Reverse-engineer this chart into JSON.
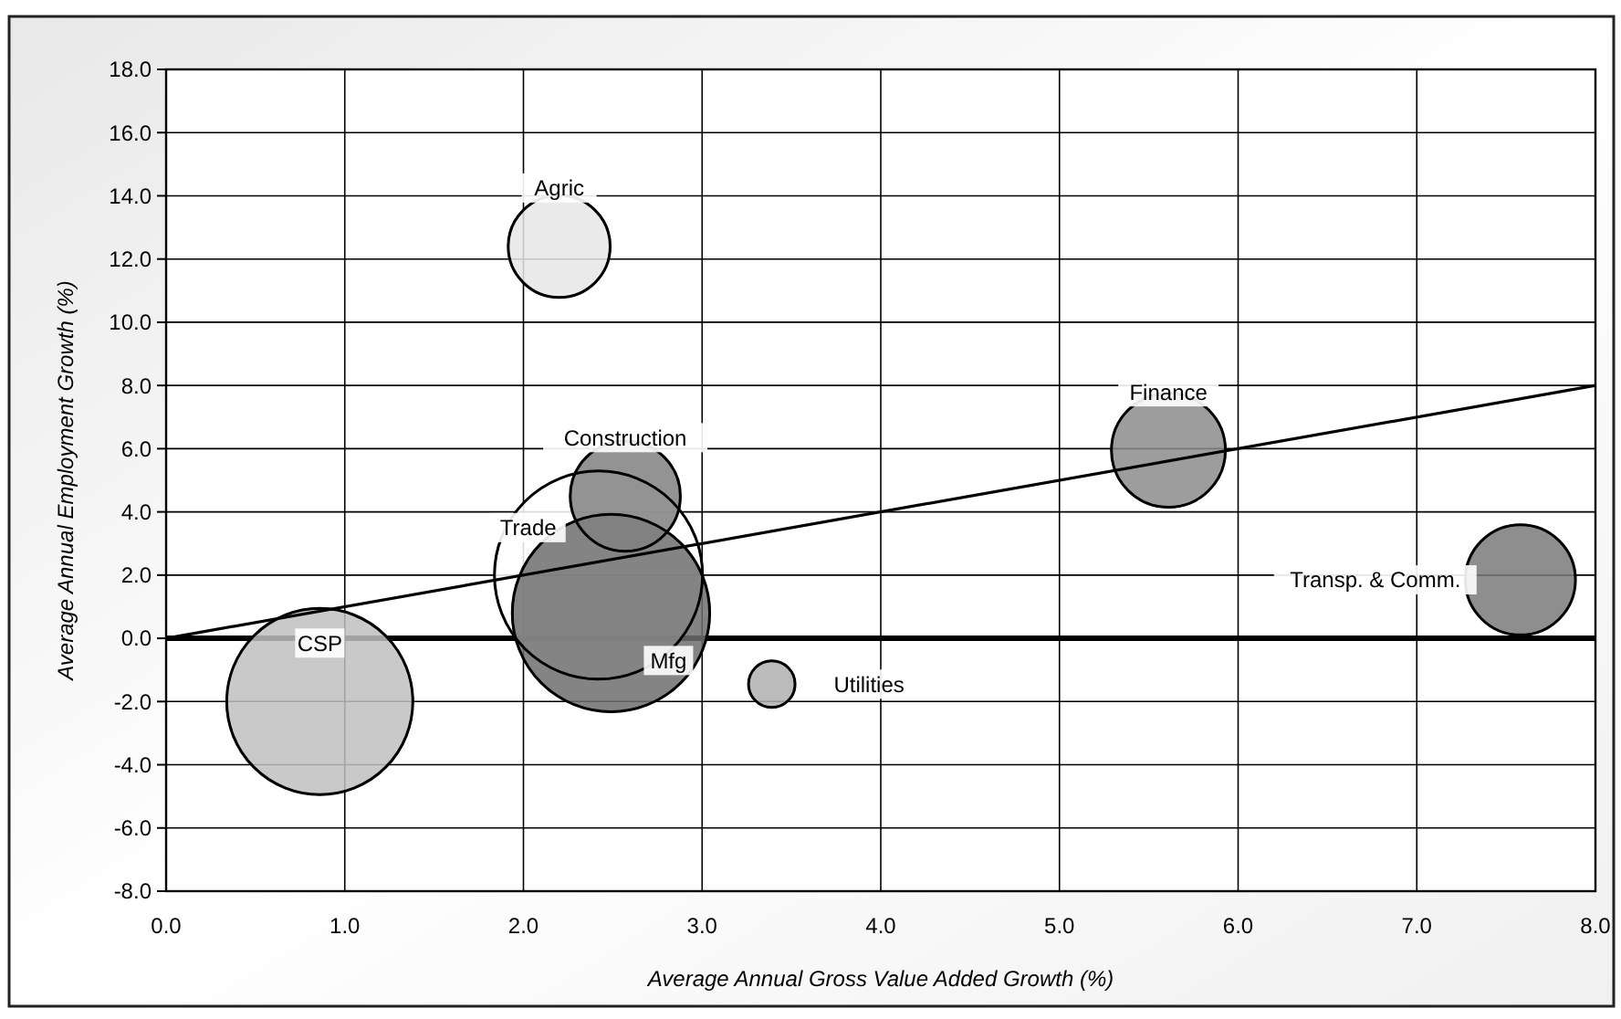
{
  "chart_data": {
    "type": "bubble",
    "xlabel": "Average Annual Gross Value Added Growth (%)",
    "ylabel": "Average Annual Employment Growth (%)",
    "xlim": [
      0,
      8
    ],
    "ylim": [
      -8,
      18
    ],
    "xticks": [
      {
        "value": 0,
        "label": "0.0"
      },
      {
        "value": 1,
        "label": "1.0"
      },
      {
        "value": 2,
        "label": "2.0"
      },
      {
        "value": 3,
        "label": "3.0"
      },
      {
        "value": 4,
        "label": "4.0"
      },
      {
        "value": 5,
        "label": "5.0"
      },
      {
        "value": 6,
        "label": "6.0"
      },
      {
        "value": 7,
        "label": "7.0"
      },
      {
        "value": 8,
        "label": "8.0"
      }
    ],
    "yticks": [
      {
        "value": -8,
        "label": "-8.0"
      },
      {
        "value": -6,
        "label": "-6.0"
      },
      {
        "value": -4,
        "label": "-4.0"
      },
      {
        "value": -2,
        "label": "-2.0"
      },
      {
        "value": 0,
        "label": "0.0"
      },
      {
        "value": 2,
        "label": "2.0"
      },
      {
        "value": 4,
        "label": "4.0"
      },
      {
        "value": 6,
        "label": "6.0"
      },
      {
        "value": 8,
        "label": "8.0"
      },
      {
        "value": 10,
        "label": "10.0"
      },
      {
        "value": 12,
        "label": "12.0"
      },
      {
        "value": 14,
        "label": "14.0"
      },
      {
        "value": 16,
        "label": "16.0"
      },
      {
        "value": 18,
        "label": "18.0"
      }
    ],
    "grid": true,
    "series": [
      {
        "x": [
          0.86,
          2.42,
          2.49,
          2.57,
          2.2,
          3.39,
          5.61,
          7.58
        ],
        "values": [
          -2.0,
          2.0,
          0.8,
          4.5,
          12.4,
          -1.45,
          5.95,
          1.85
        ],
        "sizes": [
          0.8,
          1,
          0.9,
          0.28,
          0.24,
          0.05,
          0.3,
          0.28
        ],
        "colors": [
          "#c0c0c0",
          "#ffffff",
          "#6e6e6e",
          "#808080",
          "#e6e6e6",
          "#b0b0b0",
          "#8c8c8c",
          "#7a7a7a"
        ]
      },
      {
        "type": "line",
        "x": [
          0,
          8
        ],
        "values": [
          0,
          8
        ],
        "color": "#000000"
      }
    ],
    "annotations": [
      {
        "text": "CSP",
        "x": 0.86,
        "y": -2.0
      },
      {
        "text": "Trade",
        "x": 2.42,
        "y": 2.0
      },
      {
        "text": "Mfg",
        "x": 2.49,
        "y": 0.8
      },
      {
        "text": "Construction",
        "x": 2.57,
        "y": 4.5
      },
      {
        "text": "Agric",
        "x": 2.2,
        "y": 12.4
      },
      {
        "text": "Utilities",
        "x": 3.39,
        "y": -1.45
      },
      {
        "text": "Finance",
        "x": 5.61,
        "y": 5.95
      },
      {
        "text": "Transp. & Comm.",
        "x": 7.58,
        "y": 1.85
      }
    ]
  }
}
